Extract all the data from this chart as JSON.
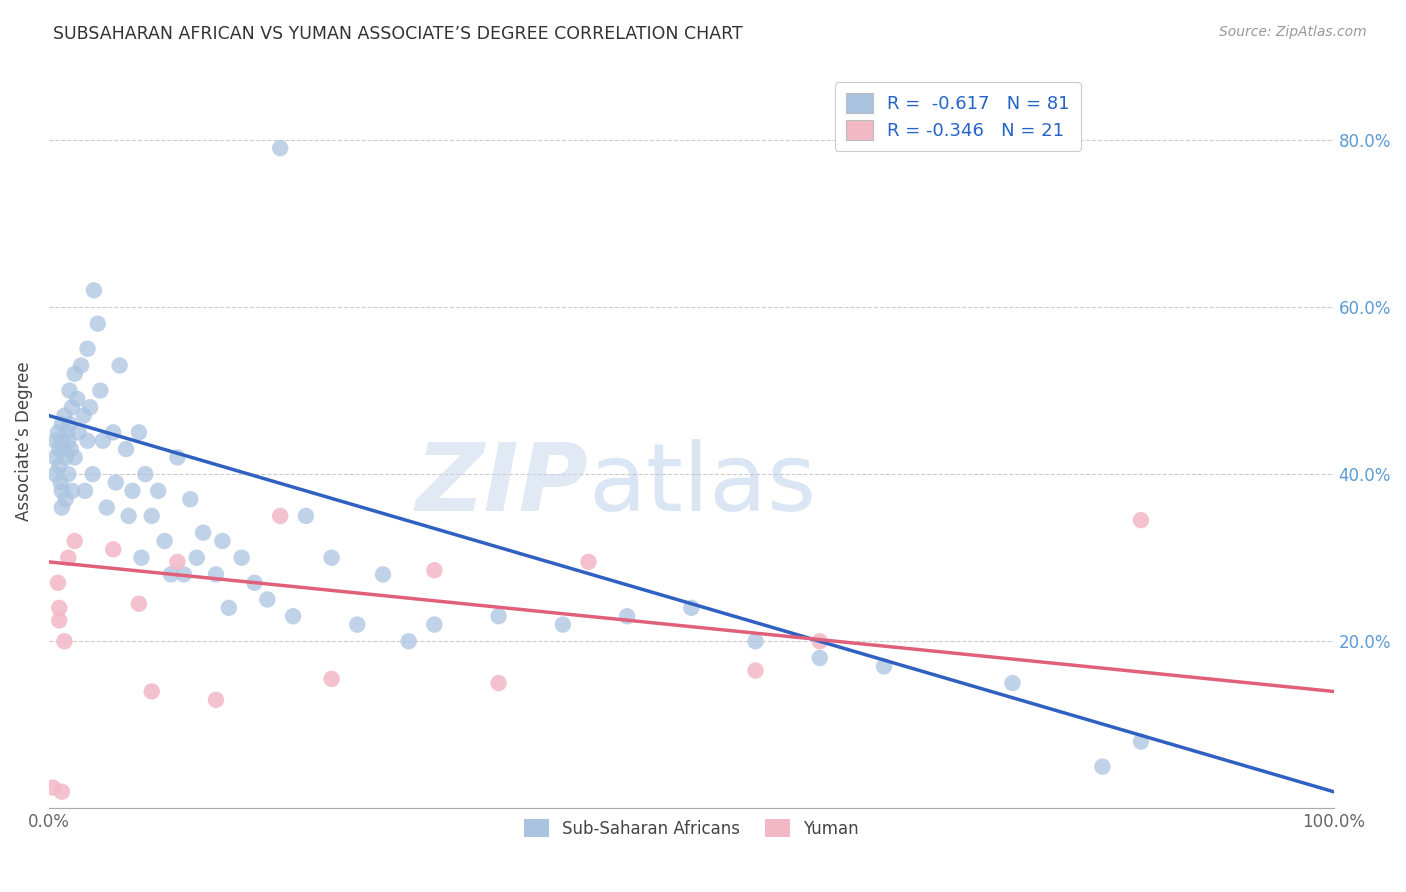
{
  "title": "SUBSAHARAN AFRICAN VS YUMAN ASSOCIATE’S DEGREE CORRELATION CHART",
  "source": "Source: ZipAtlas.com",
  "ylabel": "Associate’s Degree",
  "yticks": [
    0.0,
    0.2,
    0.4,
    0.6,
    0.8
  ],
  "ytick_labels": [
    "",
    "20.0%",
    "40.0%",
    "60.0%",
    "80.0%"
  ],
  "xlim": [
    0.0,
    1.0
  ],
  "ylim": [
    0.0,
    0.88
  ],
  "legend_r_blue": "R =  -0.617",
  "legend_n_blue": "N = 81",
  "legend_r_pink": "R = -0.346",
  "legend_n_pink": "N = 21",
  "blue_color": "#aac4e0",
  "pink_color": "#f2b8c6",
  "blue_line_color": "#3060c0",
  "pink_line_color": "#e0607a",
  "watermark_zip": "ZIP",
  "watermark_atlas": "atlas",
  "blue_line_y_start": 0.47,
  "blue_line_y_end": 0.02,
  "pink_line_y_start": 0.295,
  "pink_line_y_end": 0.14,
  "blue_scatter_x": [
    0.005,
    0.005,
    0.005,
    0.007,
    0.008,
    0.008,
    0.009,
    0.01,
    0.01,
    0.01,
    0.01,
    0.012,
    0.012,
    0.013,
    0.013,
    0.014,
    0.015,
    0.015,
    0.016,
    0.016,
    0.017,
    0.018,
    0.018,
    0.02,
    0.02,
    0.022,
    0.023,
    0.025,
    0.027,
    0.028,
    0.03,
    0.03,
    0.032,
    0.034,
    0.035,
    0.038,
    0.04,
    0.042,
    0.045,
    0.05,
    0.052,
    0.055,
    0.06,
    0.062,
    0.065,
    0.07,
    0.072,
    0.075,
    0.08,
    0.085,
    0.09,
    0.095,
    0.1,
    0.105,
    0.11,
    0.115,
    0.12,
    0.13,
    0.135,
    0.14,
    0.15,
    0.16,
    0.17,
    0.18,
    0.19,
    0.2,
    0.22,
    0.24,
    0.26,
    0.28,
    0.3,
    0.35,
    0.4,
    0.45,
    0.5,
    0.55,
    0.6,
    0.65,
    0.75,
    0.82,
    0.85
  ],
  "blue_scatter_y": [
    0.44,
    0.42,
    0.4,
    0.45,
    0.43,
    0.41,
    0.39,
    0.46,
    0.44,
    0.38,
    0.36,
    0.47,
    0.43,
    0.42,
    0.37,
    0.45,
    0.44,
    0.4,
    0.5,
    0.46,
    0.43,
    0.48,
    0.38,
    0.52,
    0.42,
    0.49,
    0.45,
    0.53,
    0.47,
    0.38,
    0.55,
    0.44,
    0.48,
    0.4,
    0.62,
    0.58,
    0.5,
    0.44,
    0.36,
    0.45,
    0.39,
    0.53,
    0.43,
    0.35,
    0.38,
    0.45,
    0.3,
    0.4,
    0.35,
    0.38,
    0.32,
    0.28,
    0.42,
    0.28,
    0.37,
    0.3,
    0.33,
    0.28,
    0.32,
    0.24,
    0.3,
    0.27,
    0.25,
    0.79,
    0.23,
    0.35,
    0.3,
    0.22,
    0.28,
    0.2,
    0.22,
    0.23,
    0.22,
    0.23,
    0.24,
    0.2,
    0.18,
    0.17,
    0.15,
    0.05,
    0.08
  ],
  "pink_scatter_x": [
    0.003,
    0.007,
    0.008,
    0.008,
    0.01,
    0.012,
    0.015,
    0.02,
    0.05,
    0.07,
    0.08,
    0.1,
    0.13,
    0.18,
    0.22,
    0.3,
    0.35,
    0.42,
    0.55,
    0.6,
    0.85
  ],
  "pink_scatter_y": [
    0.025,
    0.27,
    0.24,
    0.225,
    0.02,
    0.2,
    0.3,
    0.32,
    0.31,
    0.245,
    0.14,
    0.295,
    0.13,
    0.35,
    0.155,
    0.285,
    0.15,
    0.295,
    0.165,
    0.2,
    0.345
  ]
}
